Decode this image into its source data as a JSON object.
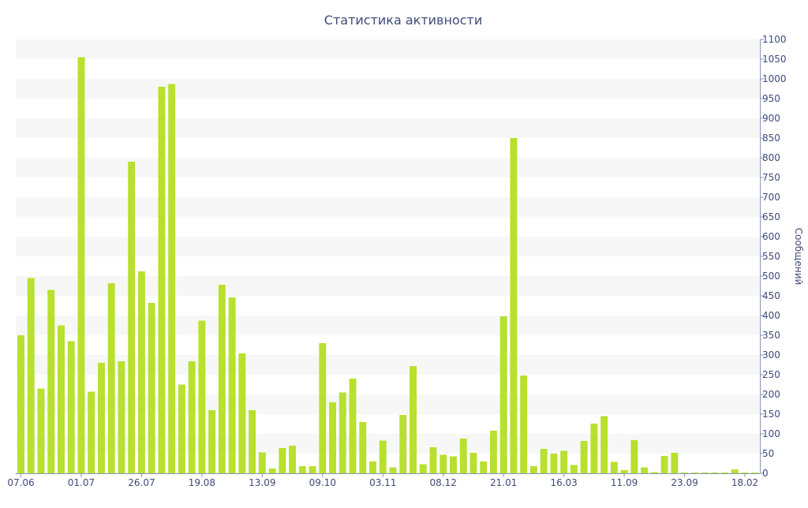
{
  "chart_data": {
    "type": "bar",
    "title": "Статистика активности",
    "xlabel": "",
    "ylabel": "Сообщений",
    "y_axis_side": "right",
    "ylim": [
      0,
      1100
    ],
    "y_ticks": [
      0,
      50,
      100,
      150,
      200,
      250,
      300,
      350,
      400,
      450,
      500,
      550,
      600,
      650,
      700,
      750,
      800,
      850,
      900,
      950,
      1000,
      1050,
      1100
    ],
    "x_tick_labels": [
      {
        "index": 0,
        "label": "07.06"
      },
      {
        "index": 6,
        "label": "01.07"
      },
      {
        "index": 12,
        "label": "26.07"
      },
      {
        "index": 18,
        "label": "19.08"
      },
      {
        "index": 24,
        "label": "13.09"
      },
      {
        "index": 30,
        "label": "09.10"
      },
      {
        "index": 36,
        "label": "03.11"
      },
      {
        "index": 42,
        "label": "08.12"
      },
      {
        "index": 48,
        "label": "21.01"
      },
      {
        "index": 54,
        "label": "16.03"
      },
      {
        "index": 60,
        "label": "11.09"
      },
      {
        "index": 66,
        "label": "23.09"
      },
      {
        "index": 72,
        "label": "18.02"
      }
    ],
    "values": [
      350,
      495,
      215,
      465,
      375,
      335,
      1055,
      207,
      280,
      482,
      284,
      790,
      512,
      432,
      980,
      987,
      225,
      284,
      387,
      160,
      478,
      446,
      304,
      160,
      53,
      12,
      64,
      70,
      18,
      18,
      330,
      180,
      205,
      240,
      130,
      30,
      83,
      15,
      148,
      272,
      23,
      66,
      47,
      43,
      88,
      52,
      30,
      108,
      398,
      850,
      248,
      18,
      62,
      50,
      57,
      21,
      82,
      126,
      145,
      29,
      8,
      84,
      15,
      3,
      44,
      52,
      2,
      2,
      2,
      2,
      2,
      10,
      2,
      2
    ],
    "bar_color": "#b8e02e",
    "grid": "horizontal-bands",
    "band_color": "#f7f7f7",
    "legend": "none"
  }
}
